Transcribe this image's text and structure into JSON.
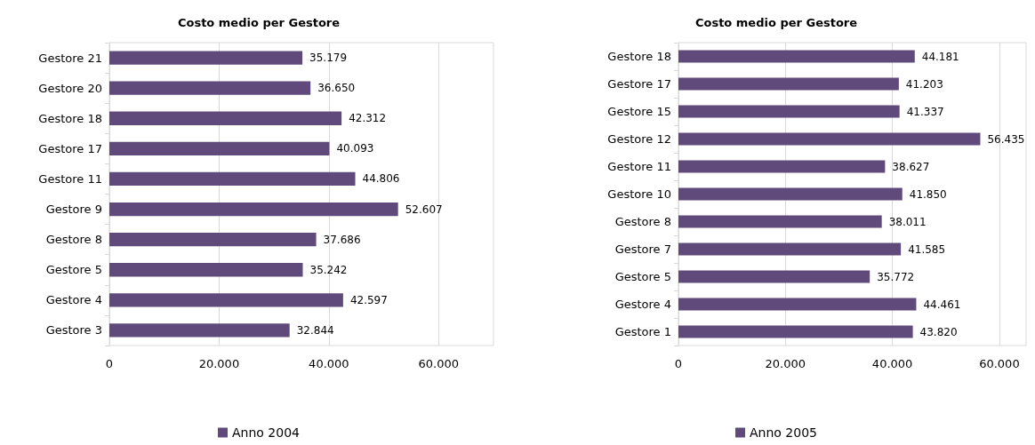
{
  "chart_data": [
    {
      "type": "bar",
      "orientation": "horizontal",
      "title": "Costo medio per Gestore",
      "categories": [
        "Gestore 21",
        "Gestore 20",
        "Gestore 18",
        "Gestore 17",
        "Gestore 11",
        "Gestore 9",
        "Gestore 8",
        "Gestore 5",
        "Gestore 4",
        "Gestore 3"
      ],
      "series": [
        {
          "name": "Anno 2004",
          "color": "#604a7b",
          "values": [
            35179,
            36650,
            42312,
            40093,
            44806,
            52607,
            37686,
            35242,
            42597,
            32844
          ],
          "value_labels": [
            "35.179",
            "36.650",
            "42.312",
            "40.093",
            "44.806",
            "52.607",
            "37.686",
            "35.242",
            "42.597",
            "32.844"
          ]
        }
      ],
      "xlim": [
        0,
        70000
      ],
      "xticks": [
        {
          "value": 0,
          "label": "0"
        },
        {
          "value": 20000,
          "label": "20.000"
        },
        {
          "value": 40000,
          "label": "40.000"
        },
        {
          "value": 60000,
          "label": "60.000"
        }
      ],
      "grid": "x",
      "legend": "bottom"
    },
    {
      "type": "bar",
      "orientation": "horizontal",
      "title": "Costo medio per Gestore",
      "categories": [
        "Gestore 18",
        "Gestore 17",
        "Gestore 15",
        "Gestore 12",
        "Gestore 11",
        "Gestore 10",
        "Gestore 8",
        "Gestore 7",
        "Gestore 5",
        "Gestore 4",
        "Gestore 1"
      ],
      "series": [
        {
          "name": "Anno 2005",
          "color": "#604a7b",
          "values": [
            44181,
            41203,
            41337,
            56435,
            38627,
            41850,
            38011,
            41585,
            35772,
            44461,
            43820
          ],
          "value_labels": [
            "44.181",
            "41.203",
            "41.337",
            "56.435",
            "38.627",
            "41.850",
            "38.011",
            "41.585",
            "35.772",
            "44.461",
            "43.820"
          ]
        }
      ],
      "xlim": [
        0,
        65000
      ],
      "xticks": [
        {
          "value": 0,
          "label": "0"
        },
        {
          "value": 20000,
          "label": "20.000"
        },
        {
          "value": 40000,
          "label": "40.000"
        },
        {
          "value": 60000,
          "label": "60.000"
        }
      ],
      "grid": "x",
      "legend": "bottom"
    }
  ]
}
